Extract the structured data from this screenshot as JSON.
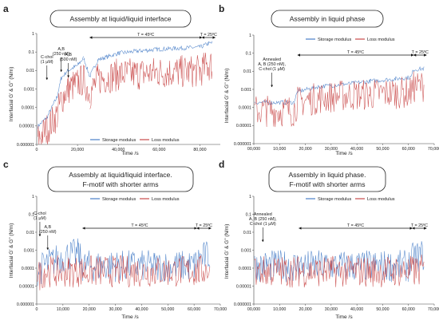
{
  "chart_data": [
    {
      "panel": "a",
      "type": "line",
      "title": "Assembly at liquid/liquid interface",
      "title_lines": [
        "Assembly at liquid/liquid interface"
      ],
      "xlabel": "Time /s",
      "ylabel": "Interfacial G’ & G’’ (N/m)",
      "y_scale": "log",
      "ylim": [
        1e-06,
        1
      ],
      "yticks": [
        "0.000001",
        "0.00001",
        "0.0001",
        "0.001",
        "0.01",
        "0.1",
        "1"
      ],
      "xlim": [
        0,
        90000
      ],
      "xticks": [
        "0",
        "20,000",
        "40,000",
        "60,000",
        "80,000"
      ],
      "legend": "bottom",
      "series": [
        {
          "name": "Storage modulus",
          "color": "#4a7fc8",
          "values": [
            [
              500,
              1e-05
            ],
            [
              5000,
              3e-05
            ],
            [
              10000,
              0.0004
            ],
            [
              12000,
              0.004
            ],
            [
              15000,
              0.01
            ],
            [
              20000,
              0.02
            ],
            [
              23000,
              0.05
            ],
            [
              26000,
              0.005
            ],
            [
              30000,
              0.04
            ],
            [
              40000,
              0.09
            ],
            [
              50000,
              0.12
            ],
            [
              60000,
              0.15
            ],
            [
              70000,
              0.17
            ],
            [
              80000,
              0.19
            ],
            [
              84000,
              0.3
            ],
            [
              86000,
              0.33
            ]
          ]
        },
        {
          "name": "Loss modulus",
          "color": "#c94a4a",
          "values": [
            [
              500,
              3e-06
            ],
            [
              5000,
              1e-05
            ],
            [
              10000,
              6e-05
            ],
            [
              12000,
              0.0004
            ],
            [
              15000,
              0.0015
            ],
            [
              20000,
              0.003
            ],
            [
              23000,
              0.005
            ],
            [
              26000,
              0.0008
            ],
            [
              30000,
              0.005
            ],
            [
              40000,
              0.009
            ],
            [
              50000,
              0.01
            ],
            [
              60000,
              0.012
            ],
            [
              70000,
              0.013
            ],
            [
              80000,
              0.014
            ],
            [
              84000,
              0.028
            ],
            [
              86000,
              0.03
            ]
          ]
        }
      ],
      "temperature": [
        {
          "label": "T = 45ºC",
          "x_from": 26000,
          "x_to": 81000
        },
        {
          "label": "T = 25ºC",
          "x_from": 81000,
          "x_to": 87500
        }
      ],
      "annotations": [
        {
          "text": [
            "C-chol",
            "(1 µM)"
          ],
          "x": 5000
        },
        {
          "text": [
            "A,B",
            "(250 nM)"
          ],
          "x": 12000
        },
        {
          "text": [
            "A,B",
            "(500 nM)"
          ],
          "x": 15500
        }
      ]
    },
    {
      "panel": "b",
      "type": "line",
      "title": "Assembly in liquid phase",
      "title_lines": [
        "Assembly in liquid phase"
      ],
      "xlabel": "Time /s",
      "ylabel": "Interfacial G’ & G’’ (N/m)",
      "y_scale": "log",
      "ylim": [
        1e-06,
        1
      ],
      "yticks": [
        "0.000001",
        "0.00001",
        "0.0001",
        "0.001",
        "0.01",
        "0.1",
        "1"
      ],
      "xlim": [
        0,
        70000
      ],
      "xticks": [
        "00,000",
        "10,000",
        "20,000",
        "30,000",
        "40,000",
        "50,000",
        "60,000",
        "70,000"
      ],
      "legend": "top",
      "series": [
        {
          "name": "Storage modulus",
          "color": "#4a7fc8",
          "values": [
            [
              300,
              0.0002
            ],
            [
              5000,
              0.0002
            ],
            [
              15500,
              0.0002
            ],
            [
              17000,
              0.0008
            ],
            [
              25000,
              0.0015
            ],
            [
              35000,
              0.002
            ],
            [
              45000,
              0.003
            ],
            [
              55000,
              0.004
            ],
            [
              61000,
              0.005
            ],
            [
              62000,
              0.013
            ],
            [
              66000,
              0.015
            ]
          ]
        },
        {
          "name": "Loss modulus",
          "color": "#c94a4a",
          "values": [
            [
              300,
              0.0001
            ],
            [
              5000,
              0.0001
            ],
            [
              15500,
              0.0001
            ],
            [
              17000,
              0.0003
            ],
            [
              25000,
              0.0005
            ],
            [
              35000,
              0.0007
            ],
            [
              45000,
              0.0008
            ],
            [
              55000,
              0.001
            ],
            [
              61000,
              0.001
            ],
            [
              62000,
              0.002
            ],
            [
              66000,
              0.0025
            ]
          ]
        }
      ],
      "temperature": [
        {
          "label": "T = 45ºC",
          "x_from": 17000,
          "x_to": 62000
        },
        {
          "label": "T = 25ºC",
          "x_from": 62000,
          "x_to": 67000
        }
      ],
      "annotations": [
        {
          "text": [
            "Annealed",
            "A, B (250 nM),",
            "C-chol (1 µM)"
          ],
          "x": 7000
        }
      ]
    },
    {
      "panel": "c",
      "type": "line",
      "title": "Assembly at liquid/liquid interface. F-motif with shorter arms",
      "title_lines": [
        "Assembly at liquid/liquid interface.",
        "F-motif with shorter arms"
      ],
      "xlabel": "Time /s",
      "ylabel": "Interfacial G’ & G’’ (N/m)",
      "y_scale": "log",
      "ylim": [
        1e-06,
        1
      ],
      "yticks": [
        "0.000001",
        "0.00001",
        "0.0001",
        "0.001",
        "0.01",
        "0.1",
        "1"
      ],
      "xlim": [
        0,
        70000
      ],
      "xticks": [
        "0",
        "10,000",
        "20,000",
        "30,000",
        "40,000",
        "50,000",
        "60,000",
        "70,000"
      ],
      "legend": "top",
      "series": [
        {
          "name": "Storage modulus",
          "color": "#4a7fc8",
          "values": [
            [
              300,
              0.0001
            ],
            [
              3000,
              0.0002
            ],
            [
              8000,
              0.0005
            ],
            [
              12000,
              0.0008
            ],
            [
              16000,
              0.0009
            ],
            [
              17500,
              0.0002
            ],
            [
              30000,
              0.0002
            ],
            [
              45000,
              0.0002
            ],
            [
              60000,
              0.0002
            ],
            [
              62000,
              0.0005
            ],
            [
              66000,
              0.0008
            ]
          ]
        },
        {
          "name": "Loss modulus",
          "color": "#c94a4a",
          "values": [
            [
              300,
              5e-05
            ],
            [
              3000,
              0.0001
            ],
            [
              8000,
              0.0001
            ],
            [
              12000,
              0.0001
            ],
            [
              16000,
              0.0001
            ],
            [
              17500,
              0.0001
            ],
            [
              30000,
              0.0001
            ],
            [
              45000,
              0.0001
            ],
            [
              60000,
              0.0001
            ],
            [
              62000,
              0.0001
            ],
            [
              66000,
              0.00015
            ]
          ]
        }
      ],
      "temperature": [
        {
          "label": "T = 45ºC",
          "x_from": 17500,
          "x_to": 61000
        },
        {
          "label": "T = 25ºC",
          "x_from": 61000,
          "x_to": 66500
        }
      ],
      "annotations": [
        {
          "text": [
            "C-chol",
            "(1 µM)"
          ],
          "x": 1200
        },
        {
          "text": [
            "A,B",
            "(250 nM)"
          ],
          "x": 4200
        }
      ]
    },
    {
      "panel": "d",
      "type": "line",
      "title": "Assembly in liquid phase. F-motif with shorter arms",
      "title_lines": [
        "Assembly in liquid phase.",
        "F-motif with shorter arms"
      ],
      "xlabel": "Time /s",
      "ylabel": "Interfacial G’ & G’’ (N/m)",
      "y_scale": "log",
      "ylim": [
        1e-06,
        1
      ],
      "yticks": [
        "0.000001",
        "0.00001",
        "0.0001",
        "0.001",
        "0.01",
        "0.1",
        "1"
      ],
      "xlim": [
        0,
        70000
      ],
      "xticks": [
        "00,000",
        "10,000",
        "20,000",
        "30,000",
        "40,000",
        "50,000",
        "60,000",
        "70,000"
      ],
      "legend": "top",
      "series": [
        {
          "name": "Storage modulus",
          "color": "#4a7fc8",
          "values": [
            [
              300,
              0.0002
            ],
            [
              5000,
              0.0002
            ],
            [
              15500,
              0.0002
            ],
            [
              17500,
              0.0002
            ],
            [
              30000,
              0.0002
            ],
            [
              45000,
              0.0002
            ],
            [
              60000,
              0.0002
            ],
            [
              62000,
              0.0006
            ],
            [
              66000,
              0.0008
            ]
          ]
        },
        {
          "name": "Loss modulus",
          "color": "#c94a4a",
          "values": [
            [
              300,
              0.0001
            ],
            [
              5000,
              0.0001
            ],
            [
              15500,
              0.0001
            ],
            [
              17500,
              0.0001
            ],
            [
              30000,
              0.0001
            ],
            [
              45000,
              0.0001
            ],
            [
              60000,
              0.0001
            ],
            [
              62000,
              0.0001
            ],
            [
              66000,
              0.00012
            ]
          ]
        }
      ],
      "temperature": [
        {
          "label": "T = 45ºC",
          "x_from": 17500,
          "x_to": 61500
        },
        {
          "label": "T = 25ºC",
          "x_from": 61500,
          "x_to": 67000
        }
      ],
      "annotations": [
        {
          "text": [
            "Annealed",
            "A, B (250 nM),",
            "C-chol (1 µM)"
          ],
          "x": 3500
        }
      ]
    }
  ]
}
